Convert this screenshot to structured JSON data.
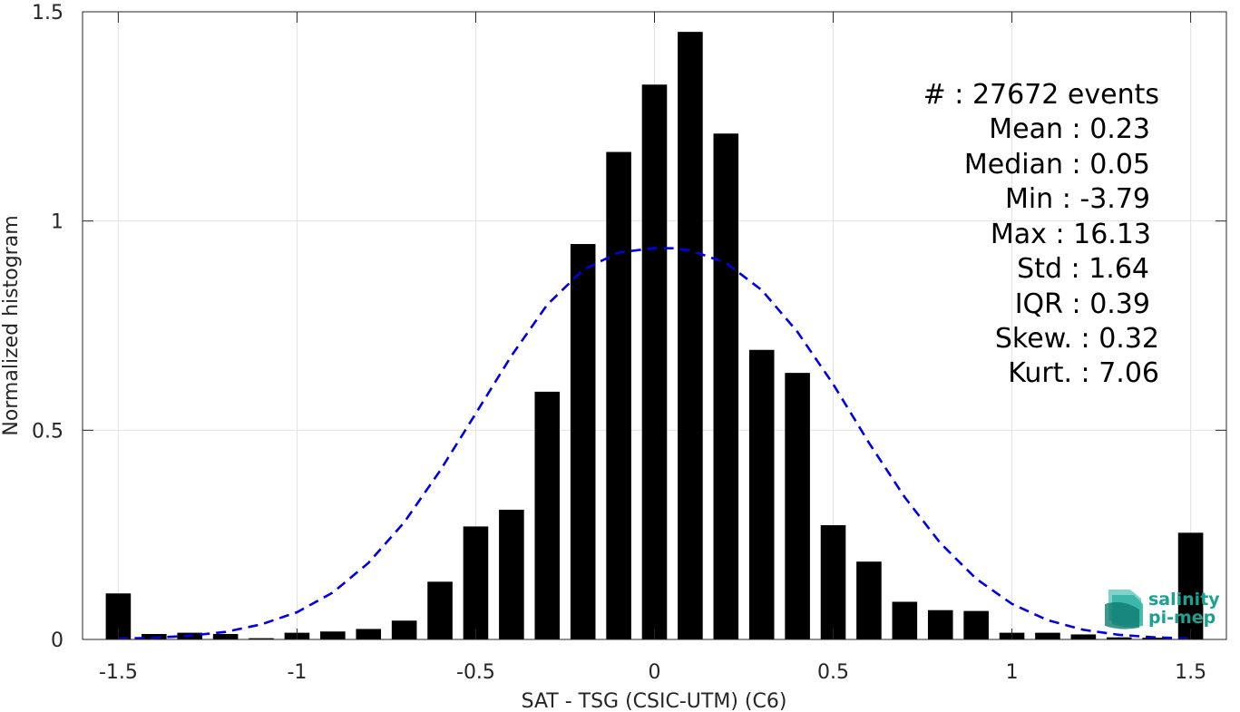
{
  "chart_data": {
    "type": "bar",
    "xlabel": "SAT - TSG (CSIC-UTM) (C6)",
    "ylabel": "Normalized histogram",
    "xlim": [
      -1.6,
      1.6
    ],
    "ylim": [
      0,
      1.5
    ],
    "grid": true,
    "x_ticks": [
      -1.5,
      -1,
      -0.5,
      0,
      0.5,
      1,
      1.5
    ],
    "x_tick_labels": [
      "-1.5",
      "-1",
      "-0.5",
      "0",
      "0.5",
      "1",
      "1.5"
    ],
    "y_ticks": [
      0,
      0.5,
      1,
      1.5
    ],
    "y_tick_labels": [
      "0",
      "0.5",
      "1",
      "1.5"
    ],
    "bar_width": 0.07,
    "bars": {
      "x": [
        -1.5,
        -1.4,
        -1.3,
        -1.2,
        -1.1,
        -1.0,
        -0.9,
        -0.8,
        -0.7,
        -0.6,
        -0.5,
        -0.4,
        -0.3,
        -0.2,
        -0.1,
        0.0,
        0.1,
        0.2,
        0.3,
        0.4,
        0.5,
        0.6,
        0.7,
        0.8,
        0.9,
        1.0,
        1.1,
        1.2,
        1.3,
        1.4,
        1.5
      ],
      "values": [
        0.11,
        0.013,
        0.016,
        0.013,
        0.003,
        0.016,
        0.019,
        0.025,
        0.045,
        0.138,
        0.27,
        0.31,
        0.592,
        0.945,
        1.165,
        1.326,
        1.452,
        1.209,
        0.692,
        0.637,
        0.273,
        0.186,
        0.09,
        0.07,
        0.068,
        0.016,
        0.016,
        0.012,
        0.005,
        0.004,
        0.255
      ],
      "color": "#000000"
    },
    "fit_curve": {
      "style": "dashed",
      "color": "#0000e6",
      "x": [
        -1.5,
        -1.4,
        -1.3,
        -1.2,
        -1.1,
        -1.0,
        -0.9,
        -0.8,
        -0.7,
        -0.6,
        -0.5,
        -0.4,
        -0.3,
        -0.2,
        -0.1,
        0.0,
        0.05,
        0.1,
        0.2,
        0.3,
        0.4,
        0.5,
        0.6,
        0.7,
        0.8,
        0.9,
        1.0,
        1.1,
        1.2,
        1.3,
        1.4,
        1.5
      ],
      "y": [
        0.002,
        0.004,
        0.009,
        0.018,
        0.036,
        0.065,
        0.112,
        0.183,
        0.28,
        0.403,
        0.54,
        0.678,
        0.8,
        0.883,
        0.925,
        0.935,
        0.935,
        0.93,
        0.9,
        0.835,
        0.735,
        0.61,
        0.47,
        0.34,
        0.23,
        0.145,
        0.085,
        0.046,
        0.023,
        0.011,
        0.005,
        0.002
      ]
    },
    "stats": [
      {
        "label": "#  ",
        "value": "27672 events"
      },
      {
        "label": "Mean",
        "value": "0.23"
      },
      {
        "label": "Median",
        "value": "0.05"
      },
      {
        "label": "Min",
        "value": "-3.79"
      },
      {
        "label": "Max",
        "value": "16.13"
      },
      {
        "label": "Std",
        "value": "1.64"
      },
      {
        "label": "IQR",
        "value": "0.39"
      },
      {
        "label": "Skew.",
        "value": "0.32"
      },
      {
        "label": "Kurt.",
        "value": "7.06"
      }
    ],
    "stats_text": [
      "#  : 27672 events",
      "Mean : 0.23",
      "Median : 0.05",
      "Min : -3.79",
      "Max : 16.13",
      "Std : 1.64",
      "IQR : 0.39",
      "Skew. : 0.32",
      "Kurt. : 7.06"
    ]
  },
  "logo": {
    "line1": "salinity",
    "line2": "pi-mep",
    "colors": {
      "text": "#1aa190",
      "light": "#7fd3c8",
      "dark": "#0f7c70"
    }
  }
}
